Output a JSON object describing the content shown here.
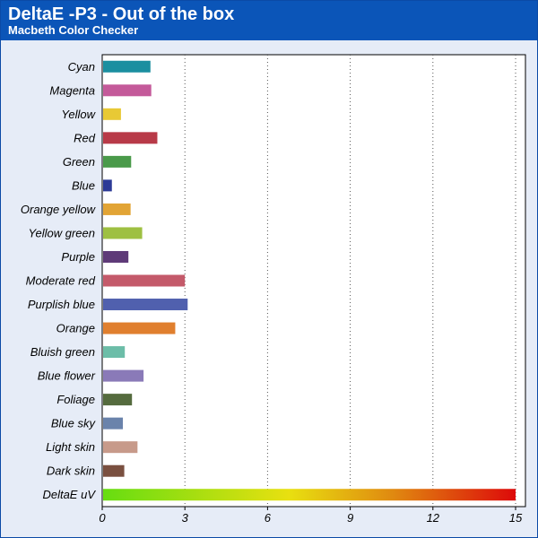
{
  "header": {
    "title": "DeltaE -P3 - Out of the box",
    "subtitle": "Macbeth Color Checker"
  },
  "colors": {
    "header_bg": "#0b55b8",
    "panel_bg": "#e6ecf7",
    "plot_bg": "#ffffff"
  },
  "chart_data": {
    "type": "bar",
    "orientation": "horizontal",
    "grid": "vertical dotted",
    "xlim": [
      0,
      15
    ],
    "xticks": [
      "0",
      "3",
      "6",
      "9",
      "12",
      "15"
    ],
    "categories": [
      "Cyan",
      "Magenta",
      "Yellow",
      "Red",
      "Green",
      "Blue",
      "Orange yellow",
      "Yellow green",
      "Purple",
      "Moderate red",
      "Purplish blue",
      "Orange",
      "Bluish green",
      "Blue flower",
      "Foliage",
      "Blue sky",
      "Light skin",
      "Dark skin",
      "DeltaE uV"
    ],
    "values": [
      1.75,
      1.78,
      0.68,
      2.0,
      1.05,
      0.35,
      1.03,
      1.45,
      0.95,
      3.0,
      3.1,
      2.65,
      0.82,
      1.5,
      1.08,
      0.75,
      1.28,
      0.8,
      15
    ],
    "bar_colors": [
      "#1b8fa0",
      "#c45a9a",
      "#e8c935",
      "#b83a48",
      "#4a9a4a",
      "#2c3a96",
      "#e2a435",
      "#9ec042",
      "#5e3a78",
      "#c45a6a",
      "#5060ae",
      "#e07f2e",
      "#6cbda8",
      "#8a7ab8",
      "#556b3e",
      "#6a83ab",
      "#c79a8a",
      "#7a5040",
      "gradient"
    ]
  }
}
